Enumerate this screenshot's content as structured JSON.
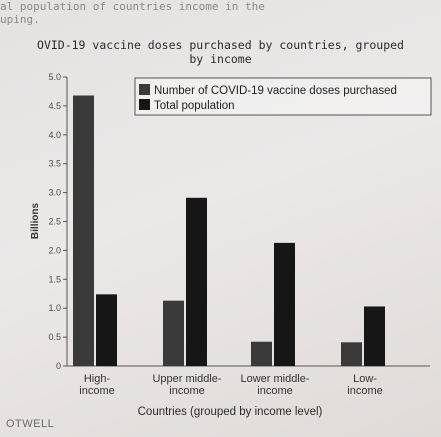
{
  "top_text_line1": "al population of countries income in the",
  "top_text_line2": "uping.",
  "footer_text": "OTWELL",
  "chart_data": {
    "type": "bar",
    "title_line1": "OVID-19 vaccine doses purchased by countries, grouped",
    "title_line2": "by income",
    "xlabel": "Countries (grouped by income level)",
    "ylabel": "Billions",
    "ylim": [
      0,
      5.0
    ],
    "yticks": [
      "0",
      "0.5",
      "1.0",
      "1.5",
      "2.0",
      "2.5",
      "3.0",
      "3.5",
      "4.0",
      "4.5",
      "5.0"
    ],
    "categories": [
      [
        "High-",
        "income"
      ],
      [
        "Upper middle-",
        "income"
      ],
      [
        "Lower middle-",
        "income"
      ],
      [
        "Low-",
        "income"
      ]
    ],
    "series": [
      {
        "name": "Number of COVID-19 vaccine doses purchased",
        "values": [
          4.68,
          1.13,
          0.42,
          0.41
        ],
        "color": "#3a3a3a"
      },
      {
        "name": "Total population",
        "values": [
          1.24,
          2.91,
          2.13,
          1.03
        ],
        "color": "#161616"
      }
    ],
    "legend_position": "top-right",
    "grid": false
  }
}
